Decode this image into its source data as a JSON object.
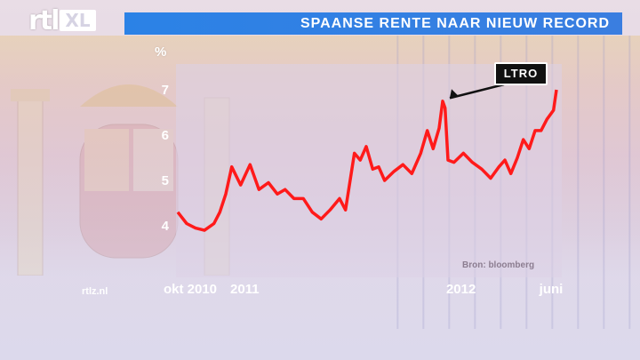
{
  "brand": {
    "logo_rtl": "rtl",
    "logo_xl": "XL",
    "site": "rtlz.nl"
  },
  "title": "SPAANSE RENTE NAAR NIEUW RECORD",
  "source": "Bron: bloomberg",
  "colors": {
    "title_bar": "#2b82e6",
    "line": "#ff1a1a",
    "panel": "#dcd2e6"
  },
  "chart_data": {
    "type": "line",
    "title": "SPAANSE RENTE NAAR NIEUW RECORD",
    "ylabel": "%",
    "xlabel": "",
    "ylim": [
      3.5,
      7.3
    ],
    "yticks": [
      4,
      5,
      6,
      7
    ],
    "x_tick_labels": [
      "okt 2010",
      "2011",
      "2012",
      "juni"
    ],
    "x_tick_dates": [
      "2010-10-01",
      "2011-01-01",
      "2012-01-01",
      "2012-06-01"
    ],
    "xlim": [
      "2010-09-10",
      "2012-06-10"
    ],
    "grid": false,
    "annotation": {
      "text": "LTRO",
      "date": "2011-12-01",
      "value": 6.7
    },
    "series": [
      {
        "x": [
          "2010-09-10",
          "2010-09-25",
          "2010-10-10",
          "2010-10-25",
          "2010-11-10",
          "2010-11-20",
          "2010-11-30",
          "2010-12-10",
          "2010-12-25",
          "2011-01-10",
          "2011-01-25",
          "2011-02-10",
          "2011-02-25",
          "2011-03-10",
          "2011-03-25",
          "2011-04-10",
          "2011-04-25",
          "2011-05-10",
          "2011-05-25",
          "2011-06-10",
          "2011-06-20",
          "2011-07-05",
          "2011-07-15",
          "2011-07-25",
          "2011-08-05",
          "2011-08-15",
          "2011-08-25",
          "2011-09-10",
          "2011-09-25",
          "2011-10-10",
          "2011-10-25",
          "2011-11-05",
          "2011-11-15",
          "2011-11-25",
          "2011-12-01",
          "2011-12-05",
          "2011-12-10",
          "2011-12-20",
          "2012-01-05",
          "2012-01-20",
          "2012-02-05",
          "2012-02-20",
          "2012-03-05",
          "2012-03-15",
          "2012-03-25",
          "2012-04-05",
          "2012-04-15",
          "2012-04-25",
          "2012-05-05",
          "2012-05-15",
          "2012-05-25",
          "2012-06-05",
          "2012-06-10"
        ],
        "values": [
          4.3,
          4.05,
          3.95,
          3.9,
          4.05,
          4.3,
          4.7,
          5.3,
          4.9,
          5.35,
          4.8,
          4.95,
          4.7,
          4.8,
          4.6,
          4.6,
          4.3,
          4.15,
          4.35,
          4.6,
          4.35,
          5.6,
          5.45,
          5.75,
          5.25,
          5.3,
          5.0,
          5.2,
          5.35,
          5.15,
          5.6,
          6.1,
          5.7,
          6.15,
          6.75,
          6.6,
          5.45,
          5.4,
          5.6,
          5.4,
          5.25,
          5.05,
          5.3,
          5.45,
          5.15,
          5.5,
          5.9,
          5.7,
          6.1,
          6.1,
          6.35,
          6.55,
          7.0
        ]
      }
    ]
  }
}
